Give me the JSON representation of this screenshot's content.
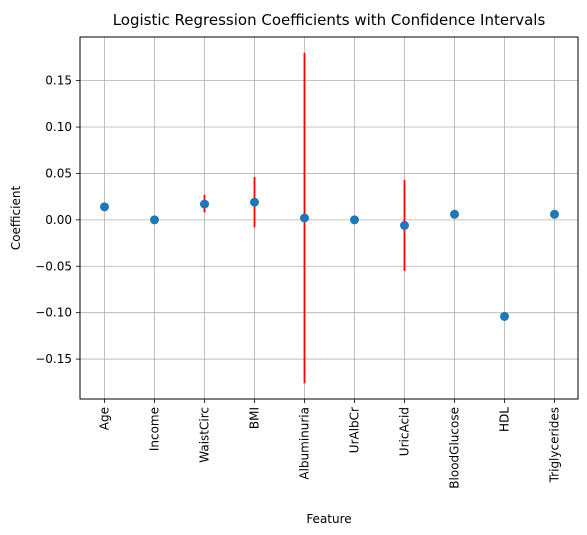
{
  "chart_data": {
    "type": "scatter",
    "title": "Logistic Regression Coefficients with Confidence Intervals",
    "xlabel": "Feature",
    "ylabel": "Coefficient",
    "categories": [
      "Age",
      "Income",
      "WaistCirc",
      "BMI",
      "Albuminuria",
      "UrAlbCr",
      "UricAcid",
      "BloodGlucose",
      "HDL",
      "Triglycerides"
    ],
    "values": [
      0.014,
      0.0,
      0.017,
      0.019,
      0.002,
      0.0,
      -0.006,
      0.006,
      -0.104,
      0.006
    ],
    "ci_lower": [
      0.014,
      0.0,
      0.008,
      -0.008,
      -0.176,
      0.0,
      -0.055,
      0.006,
      -0.104,
      0.006
    ],
    "ci_upper": [
      0.014,
      0.0,
      0.027,
      0.046,
      0.18,
      0.0,
      0.043,
      0.006,
      -0.104,
      0.006
    ],
    "ylim": [
      -0.193,
      0.197
    ],
    "yticks": [
      -0.15,
      -0.1,
      -0.05,
      0.0,
      0.05,
      0.1,
      0.15
    ],
    "ytick_labels": [
      "−0.15",
      "−0.10",
      "−0.05",
      "0.00",
      "0.05",
      "0.10",
      "0.15"
    ],
    "grid": true,
    "point_color": "#1f77b4",
    "errorbar_color": "#ff0000",
    "grid_color": "#b0b0b0"
  }
}
